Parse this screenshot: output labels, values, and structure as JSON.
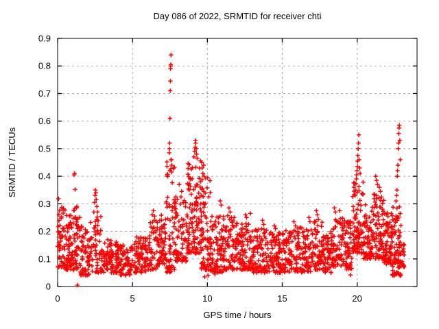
{
  "title": "Day 086 of 2022, SRMTID for receiver chti",
  "colors": {
    "marker": "#ff0000",
    "grid": "#a8a8a8",
    "frame": "#000000",
    "background": "#ffffff",
    "text": "#000000"
  },
  "chart_data": {
    "type": "scatter",
    "title": "Day 086 of 2022, SRMTID for receiver chti",
    "xlabel": "GPS time / hours",
    "ylabel": "SRMTID / TECUs",
    "xlim": [
      0,
      24
    ],
    "ylim": [
      0,
      0.9
    ],
    "x_ticks": [
      0,
      5,
      10,
      15,
      20
    ],
    "x_tick_labels": [
      "0",
      "5",
      "10",
      "15",
      "20"
    ],
    "y_ticks": [
      0,
      0.1,
      0.2,
      0.3,
      0.4,
      0.5,
      0.6,
      0.7,
      0.8,
      0.9
    ],
    "y_tick_labels": [
      "0",
      "0.1",
      "0.2",
      "0.3",
      "0.4",
      "0.5",
      "0.6",
      "0.7",
      "0.8",
      "0.9"
    ],
    "grid": true,
    "legend": "none",
    "marker_style": "plus",
    "marker_color": "#ff0000",
    "seed": 42,
    "clusters": [
      {
        "x0": 0.0,
        "x1": 0.5,
        "ymin": 0.07,
        "ymax": 0.32,
        "n": 55,
        "bias": 1.6
      },
      {
        "x0": 0.5,
        "x1": 1.0,
        "ymin": 0.06,
        "ymax": 0.26,
        "n": 55,
        "bias": 1.6
      },
      {
        "x0": 1.0,
        "x1": 1.5,
        "ymin": 0.06,
        "ymax": 0.3,
        "n": 55,
        "bias": 1.8
      },
      {
        "x0": 1.5,
        "x1": 2.2,
        "ymin": 0.04,
        "ymax": 0.22,
        "n": 65,
        "bias": 1.5
      },
      {
        "x0": 2.2,
        "x1": 2.9,
        "ymin": 0.05,
        "ymax": 0.26,
        "n": 55,
        "bias": 1.5
      },
      {
        "x0": 2.9,
        "x1": 4.0,
        "ymin": 0.05,
        "ymax": 0.17,
        "n": 85,
        "bias": 1.3
      },
      {
        "x0": 4.0,
        "x1": 5.0,
        "ymin": 0.04,
        "ymax": 0.15,
        "n": 80,
        "bias": 1.2
      },
      {
        "x0": 5.0,
        "x1": 6.0,
        "ymin": 0.05,
        "ymax": 0.18,
        "n": 80,
        "bias": 1.3
      },
      {
        "x0": 6.0,
        "x1": 6.7,
        "ymin": 0.06,
        "ymax": 0.24,
        "n": 55,
        "bias": 1.5
      },
      {
        "x0": 6.7,
        "x1": 7.25,
        "ymin": 0.08,
        "ymax": 0.26,
        "n": 55,
        "bias": 1.4
      },
      {
        "x0": 7.25,
        "x1": 7.8,
        "ymin": 0.05,
        "ymax": 0.46,
        "n": 65,
        "bias": 1.8
      },
      {
        "x0": 7.8,
        "x1": 8.6,
        "ymin": 0.09,
        "ymax": 0.33,
        "n": 75,
        "bias": 1.7
      },
      {
        "x0": 8.6,
        "x1": 9.6,
        "ymin": 0.12,
        "ymax": 0.46,
        "n": 120,
        "bias": 1.6
      },
      {
        "x0": 9.6,
        "x1": 10.2,
        "ymin": 0.06,
        "ymax": 0.4,
        "n": 70,
        "bias": 1.9
      },
      {
        "x0": 10.2,
        "x1": 11.0,
        "ymin": 0.05,
        "ymax": 0.26,
        "n": 75,
        "bias": 1.5
      },
      {
        "x0": 11.0,
        "x1": 12.0,
        "ymin": 0.06,
        "ymax": 0.26,
        "n": 90,
        "bias": 1.5
      },
      {
        "x0": 12.0,
        "x1": 13.0,
        "ymin": 0.06,
        "ymax": 0.23,
        "n": 90,
        "bias": 1.5
      },
      {
        "x0": 13.0,
        "x1": 14.0,
        "ymin": 0.05,
        "ymax": 0.21,
        "n": 90,
        "bias": 1.4
      },
      {
        "x0": 14.0,
        "x1": 15.0,
        "ymin": 0.05,
        "ymax": 0.2,
        "n": 90,
        "bias": 1.4
      },
      {
        "x0": 15.0,
        "x1": 16.0,
        "ymin": 0.05,
        "ymax": 0.21,
        "n": 90,
        "bias": 1.4
      },
      {
        "x0": 16.0,
        "x1": 17.0,
        "ymin": 0.05,
        "ymax": 0.22,
        "n": 80,
        "bias": 1.4
      },
      {
        "x0": 17.0,
        "x1": 17.7,
        "ymin": 0.06,
        "ymax": 0.25,
        "n": 60,
        "bias": 1.5
      },
      {
        "x0": 17.7,
        "x1": 18.3,
        "ymin": 0.05,
        "ymax": 0.2,
        "n": 55,
        "bias": 1.4
      },
      {
        "x0": 18.3,
        "x1": 19.1,
        "ymin": 0.07,
        "ymax": 0.26,
        "n": 70,
        "bias": 1.5
      },
      {
        "x0": 19.1,
        "x1": 19.7,
        "ymin": 0.06,
        "ymax": 0.24,
        "n": 55,
        "bias": 1.5
      },
      {
        "x0": 19.7,
        "x1": 20.4,
        "ymin": 0.12,
        "ymax": 0.38,
        "n": 85,
        "bias": 1.6
      },
      {
        "x0": 20.4,
        "x1": 21.1,
        "ymin": 0.1,
        "ymax": 0.3,
        "n": 70,
        "bias": 1.5
      },
      {
        "x0": 21.1,
        "x1": 21.8,
        "ymin": 0.1,
        "ymax": 0.34,
        "n": 80,
        "bias": 1.5
      },
      {
        "x0": 21.8,
        "x1": 22.35,
        "ymin": 0.08,
        "ymax": 0.27,
        "n": 70,
        "bias": 1.5
      },
      {
        "x0": 22.35,
        "x1": 22.95,
        "ymin": 0.04,
        "ymax": 0.3,
        "n": 80,
        "bias": 1.6
      },
      {
        "x0": 22.95,
        "x1": 23.15,
        "ymin": 0.07,
        "ymax": 0.16,
        "n": 15,
        "bias": 1.2
      }
    ],
    "outliers": [
      [
        1.1,
        0.405
      ],
      [
        1.14,
        0.41
      ],
      [
        1.17,
        0.352
      ],
      [
        1.32,
        0.005
      ],
      [
        2.05,
        0.045
      ],
      [
        2.42,
        0.27
      ],
      [
        2.47,
        0.305
      ],
      [
        2.5,
        0.33
      ],
      [
        2.52,
        0.35
      ],
      [
        2.55,
        0.34
      ],
      [
        2.58,
        0.315
      ],
      [
        2.62,
        0.29
      ],
      [
        2.66,
        0.27
      ],
      [
        4.55,
        0.04
      ],
      [
        6.32,
        0.26
      ],
      [
        6.4,
        0.275
      ],
      [
        6.47,
        0.255
      ],
      [
        7.45,
        0.485
      ],
      [
        7.47,
        0.5
      ],
      [
        7.48,
        0.52
      ],
      [
        7.5,
        0.61
      ],
      [
        7.52,
        0.71
      ],
      [
        7.53,
        0.745
      ],
      [
        7.54,
        0.79
      ],
      [
        7.55,
        0.8
      ],
      [
        7.56,
        0.805
      ],
      [
        7.57,
        0.84
      ],
      [
        7.6,
        0.46
      ],
      [
        7.62,
        0.44
      ],
      [
        8.12,
        0.37
      ],
      [
        8.28,
        0.345
      ],
      [
        9.1,
        0.47
      ],
      [
        9.15,
        0.49
      ],
      [
        9.18,
        0.505
      ],
      [
        9.2,
        0.53
      ],
      [
        9.22,
        0.52
      ],
      [
        9.25,
        0.5
      ],
      [
        9.28,
        0.48
      ],
      [
        9.32,
        0.465
      ],
      [
        9.62,
        0.45
      ],
      [
        9.65,
        0.43
      ],
      [
        9.7,
        0.41
      ],
      [
        9.75,
        0.44
      ],
      [
        9.78,
        0.4
      ],
      [
        9.82,
        0.035
      ],
      [
        10.05,
        0.04
      ],
      [
        10.5,
        0.045
      ],
      [
        10.86,
        0.31
      ],
      [
        10.92,
        0.295
      ],
      [
        11.44,
        0.285
      ],
      [
        11.52,
        0.27
      ],
      [
        12.55,
        0.26
      ],
      [
        12.62,
        0.25
      ],
      [
        12.88,
        0.265
      ],
      [
        13.68,
        0.24
      ],
      [
        13.76,
        0.225
      ],
      [
        14.48,
        0.22
      ],
      [
        14.55,
        0.21
      ],
      [
        15.78,
        0.235
      ],
      [
        15.88,
        0.22
      ],
      [
        16.78,
        0.25
      ],
      [
        16.85,
        0.235
      ],
      [
        17.28,
        0.275
      ],
      [
        17.34,
        0.26
      ],
      [
        18.48,
        0.285
      ],
      [
        18.55,
        0.27
      ],
      [
        18.84,
        0.275
      ],
      [
        19.55,
        0.042
      ],
      [
        19.95,
        0.39
      ],
      [
        19.97,
        0.405
      ],
      [
        19.99,
        0.42
      ],
      [
        20.01,
        0.435
      ],
      [
        20.03,
        0.455
      ],
      [
        20.05,
        0.475
      ],
      [
        20.07,
        0.5
      ],
      [
        20.09,
        0.52
      ],
      [
        20.11,
        0.55
      ],
      [
        20.13,
        0.46
      ],
      [
        20.16,
        0.43
      ],
      [
        20.2,
        0.41
      ],
      [
        21.24,
        0.4
      ],
      [
        21.3,
        0.385
      ],
      [
        21.36,
        0.37
      ],
      [
        21.48,
        0.36
      ],
      [
        21.55,
        0.345
      ],
      [
        22.5,
        0.04
      ],
      [
        22.6,
        0.31
      ],
      [
        22.63,
        0.33
      ],
      [
        22.66,
        0.35
      ],
      [
        22.68,
        0.4
      ],
      [
        22.7,
        0.42
      ],
      [
        22.72,
        0.44
      ],
      [
        22.74,
        0.5
      ],
      [
        22.76,
        0.52
      ],
      [
        22.78,
        0.555
      ],
      [
        22.8,
        0.575
      ],
      [
        22.82,
        0.585
      ],
      [
        22.85,
        0.53
      ],
      [
        22.88,
        0.46
      ]
    ]
  }
}
